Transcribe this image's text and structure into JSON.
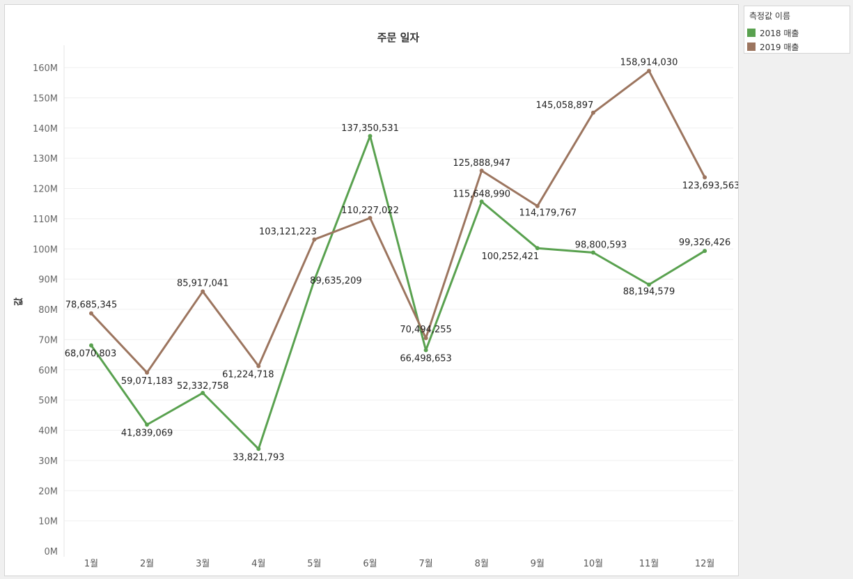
{
  "legend": {
    "title": "측정값 이름",
    "items": [
      {
        "label": "2018 매출",
        "color": "#59a14f"
      },
      {
        "label": "2019 매출",
        "color": "#9c755f"
      }
    ]
  },
  "chart_data": {
    "type": "line",
    "title": "주문 일자",
    "xlabel": "",
    "ylabel": "값",
    "categories": [
      "1월",
      "2월",
      "3월",
      "4월",
      "5월",
      "6월",
      "7월",
      "8월",
      "9월",
      "10월",
      "11월",
      "12월"
    ],
    "ylim": [
      0,
      165000000
    ],
    "yticks": [
      0,
      10000000,
      20000000,
      30000000,
      40000000,
      50000000,
      60000000,
      70000000,
      80000000,
      90000000,
      100000000,
      110000000,
      120000000,
      130000000,
      140000000,
      150000000,
      160000000
    ],
    "ytick_labels": [
      "0M",
      "10M",
      "20M",
      "30M",
      "40M",
      "50M",
      "60M",
      "70M",
      "80M",
      "90M",
      "100M",
      "110M",
      "120M",
      "130M",
      "140M",
      "150M",
      "160M"
    ],
    "grid": true,
    "series": [
      {
        "name": "2018 매출",
        "color": "#59a14f",
        "values": [
          68070803,
          41839069,
          52332758,
          33821793,
          89635209,
          137350531,
          66498653,
          115648990,
          100252421,
          98800593,
          88194579,
          99326426
        ],
        "labels": [
          "68,070,803",
          "41,839,069",
          "52,332,758",
          "33,821,793",
          "89,635,209",
          "137,350,531",
          "66,498,653",
          "115,648,990",
          "100,252,421",
          "98,800,593",
          "88,194,579",
          "99,326,426"
        ]
      },
      {
        "name": "2019 매출",
        "color": "#9c755f",
        "values": [
          78685345,
          59071183,
          85917041,
          61224718,
          103121223,
          110227022,
          70494255,
          125888947,
          114179767,
          145058897,
          158914030,
          123693563
        ],
        "labels": [
          "78,685,345",
          "59,071,183",
          "85,917,041",
          "61,224,718",
          "103,121,223",
          "110,227,022",
          "70,494,255",
          "125,888,947",
          "114,179,767",
          "145,058,897",
          "158,914,030",
          "123,693,563"
        ]
      }
    ]
  }
}
